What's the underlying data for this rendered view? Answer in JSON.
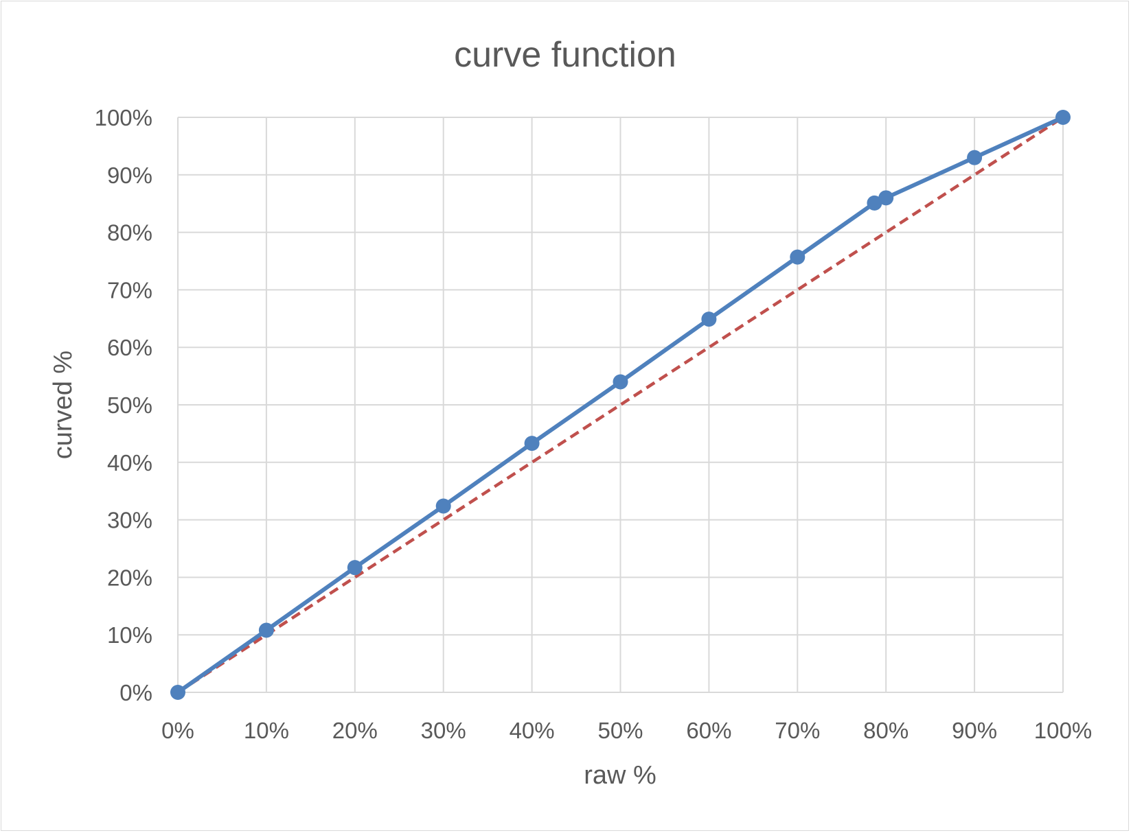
{
  "chart_data": {
    "type": "scatter",
    "title": "curve function",
    "xlabel": "raw %",
    "ylabel": "curved %",
    "xlim": [
      0,
      100
    ],
    "ylim": [
      0,
      100
    ],
    "x_ticks": [
      "0%",
      "10%",
      "20%",
      "30%",
      "40%",
      "50%",
      "60%",
      "70%",
      "80%",
      "90%",
      "100%"
    ],
    "y_ticks": [
      "0%",
      "10%",
      "20%",
      "30%",
      "40%",
      "50%",
      "60%",
      "70%",
      "80%",
      "90%",
      "100%"
    ],
    "grid": true,
    "legend": "none",
    "series": [
      {
        "style": "solid line with markers",
        "color": "#4f81bd",
        "points": [
          {
            "x": 0,
            "y": 0
          },
          {
            "x": 10,
            "y": 10.8
          },
          {
            "x": 20,
            "y": 21.7
          },
          {
            "x": 30,
            "y": 32.4
          },
          {
            "x": 40,
            "y": 43.3
          },
          {
            "x": 50,
            "y": 54.0
          },
          {
            "x": 60,
            "y": 64.9
          },
          {
            "x": 70,
            "y": 75.7
          },
          {
            "x": 78.7,
            "y": 85.1
          },
          {
            "x": 80,
            "y": 86.0
          },
          {
            "x": 90,
            "y": 93.0
          },
          {
            "x": 100,
            "y": 100
          }
        ]
      },
      {
        "style": "dashed line",
        "color": "#c0504d",
        "points": [
          {
            "x": 0,
            "y": 0
          },
          {
            "x": 100,
            "y": 100
          }
        ]
      }
    ]
  }
}
